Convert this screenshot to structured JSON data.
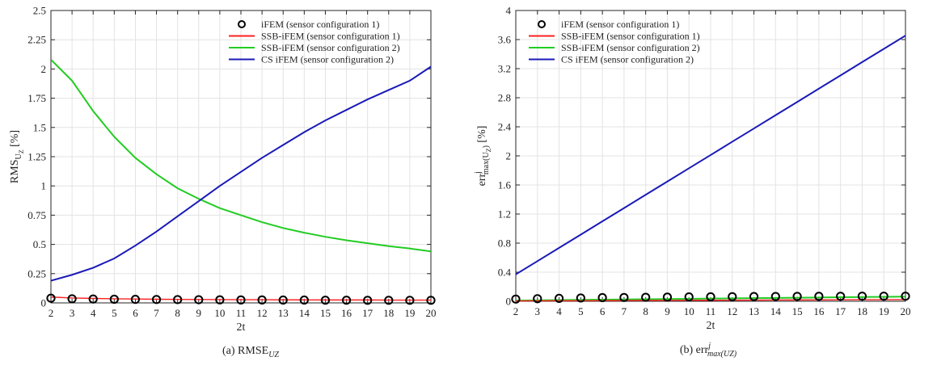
{
  "chart_data": [
    {
      "type": "line",
      "caption": "(a) RMSE",
      "caption_sub": "UZ",
      "xlabel": "2t",
      "ylabel_main": "RMS",
      "ylabel_sub": "U",
      "ylabel_subsub": "Z",
      "ylabel_unit": "[%]",
      "xlim": [
        2,
        20
      ],
      "ylim": [
        0,
        2.5
      ],
      "xticks": [
        "2",
        "3",
        "4",
        "5",
        "6",
        "7",
        "8",
        "9",
        "10",
        "11",
        "12",
        "13",
        "14",
        "15",
        "16",
        "17",
        "18",
        "19",
        "20"
      ],
      "yticks": [
        "0",
        "0.25",
        "0.5",
        "0.75",
        "1",
        "1.25",
        "1.5",
        "1.75",
        "2",
        "2.25",
        "2.5"
      ],
      "grid": true,
      "legend_position": "top-right",
      "x": [
        2,
        3,
        4,
        5,
        6,
        7,
        8,
        9,
        10,
        11,
        12,
        13,
        14,
        15,
        16,
        17,
        18,
        19,
        20
      ],
      "series": [
        {
          "name": "iFEM (sensor configuration 1)",
          "style": "marker",
          "color": "#000000",
          "values": [
            0.04,
            0.035,
            0.033,
            0.031,
            0.03,
            0.029,
            0.028,
            0.027,
            0.026,
            0.025,
            0.025,
            0.024,
            0.024,
            0.023,
            0.023,
            0.022,
            0.022,
            0.022,
            0.022
          ]
        },
        {
          "name": "SSB-iFEM (sensor configuration 1)",
          "style": "line",
          "color": "#ff2020",
          "values": [
            0.05,
            0.042,
            0.038,
            0.035,
            0.033,
            0.031,
            0.03,
            0.029,
            0.028,
            0.027,
            0.027,
            0.026,
            0.026,
            0.025,
            0.025,
            0.025,
            0.024,
            0.024,
            0.024
          ]
        },
        {
          "name": "SSB-iFEM (sensor configuration 2)",
          "style": "line",
          "color": "#22cc22",
          "values": [
            2.08,
            1.9,
            1.64,
            1.42,
            1.24,
            1.1,
            0.98,
            0.89,
            0.81,
            0.75,
            0.69,
            0.64,
            0.6,
            0.565,
            0.535,
            0.51,
            0.485,
            0.465,
            0.44
          ]
        },
        {
          "name": "CS iFEM (sensor configuration 2)",
          "style": "line",
          "color": "#1a1ab8",
          "values": [
            0.19,
            0.24,
            0.3,
            0.38,
            0.49,
            0.61,
            0.74,
            0.87,
            1.0,
            1.12,
            1.24,
            1.35,
            1.46,
            1.56,
            1.65,
            1.74,
            1.82,
            1.9,
            2.02
          ]
        }
      ]
    },
    {
      "type": "line",
      "caption": "(b) err",
      "caption_sup": "j",
      "caption_sub": "max(UZ)",
      "xlabel": "2t",
      "ylabel_main": "err",
      "ylabel_sup": "j",
      "ylabel_sub": "max(U",
      "ylabel_subsub": "Z",
      "ylabel_sub_close": ")",
      "ylabel_unit": "[%]",
      "xlim": [
        2,
        20
      ],
      "ylim": [
        0,
        4
      ],
      "xticks": [
        "2",
        "3",
        "4",
        "5",
        "6",
        "7",
        "8",
        "9",
        "10",
        "11",
        "12",
        "13",
        "14",
        "15",
        "16",
        "17",
        "18",
        "19",
        "20"
      ],
      "yticks": [
        "0",
        "0.4",
        "0.8",
        "1.2",
        "1.6",
        "2",
        "2.4",
        "2.8",
        "3.2",
        "3.6",
        "4"
      ],
      "grid": true,
      "legend_position": "top-left",
      "x": [
        2,
        3,
        4,
        5,
        6,
        7,
        8,
        9,
        10,
        11,
        12,
        13,
        14,
        15,
        16,
        17,
        18,
        19,
        20
      ],
      "series": [
        {
          "name": "iFEM (sensor configuration 1)",
          "style": "marker",
          "color": "#000000",
          "values": [
            0.03,
            0.035,
            0.04,
            0.045,
            0.05,
            0.052,
            0.055,
            0.057,
            0.06,
            0.062,
            0.063,
            0.065,
            0.066,
            0.067,
            0.068,
            0.069,
            0.07,
            0.07,
            0.07
          ]
        },
        {
          "name": "SSB-iFEM (sensor configuration 1)",
          "style": "line",
          "color": "#ff2020",
          "values": [
            0.005,
            0.006,
            0.007,
            0.008,
            0.009,
            0.01,
            0.011,
            0.012,
            0.013,
            0.014,
            0.015,
            0.016,
            0.017,
            0.018,
            0.019,
            0.02,
            0.021,
            0.022,
            0.023
          ]
        },
        {
          "name": "SSB-iFEM (sensor configuration 2)",
          "style": "line",
          "color": "#22cc22",
          "values": [
            0.01,
            0.013,
            0.016,
            0.019,
            0.022,
            0.025,
            0.028,
            0.031,
            0.034,
            0.037,
            0.04,
            0.043,
            0.046,
            0.049,
            0.052,
            0.055,
            0.058,
            0.061,
            0.064
          ]
        },
        {
          "name": "CS iFEM (sensor configuration 2)",
          "style": "line",
          "color": "#1a1ab8",
          "values": [
            0.37,
            0.552,
            0.735,
            0.917,
            1.1,
            1.282,
            1.465,
            1.647,
            1.83,
            2.012,
            2.195,
            2.377,
            2.56,
            2.742,
            2.925,
            3.107,
            3.29,
            3.472,
            3.655
          ]
        }
      ]
    }
  ]
}
